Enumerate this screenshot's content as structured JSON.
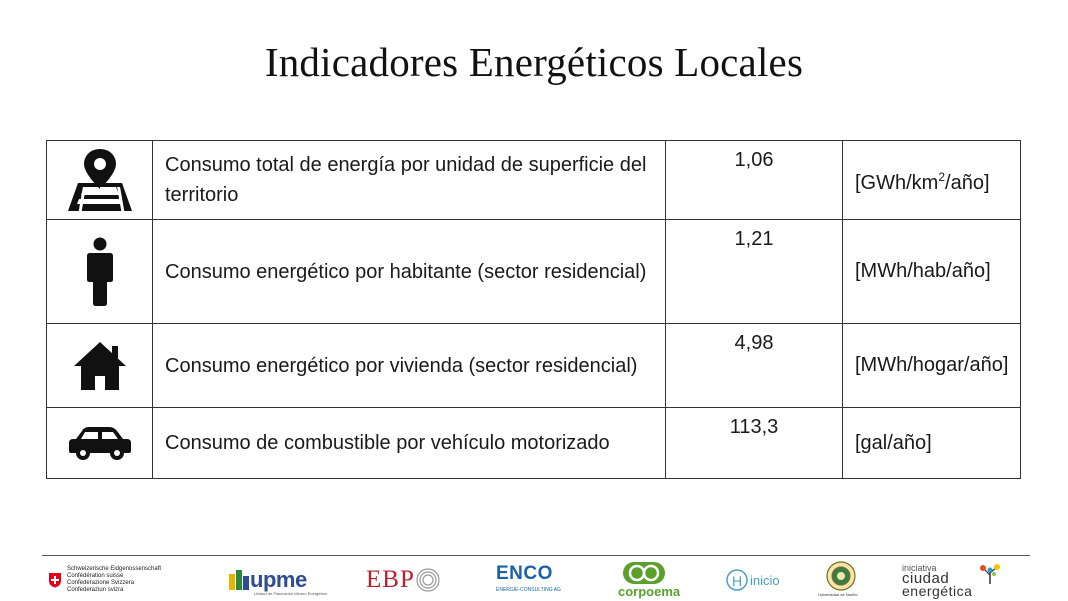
{
  "title": "Indicadores Energéticos Locales",
  "indicators": [
    {
      "icon": "map-location-icon",
      "description": "Consumo total de energía por unidad de superficie del territorio",
      "value": "1,06",
      "unit_prefix": "[GWh/km",
      "unit_sup": "2",
      "unit_suffix": "/año]"
    },
    {
      "icon": "person-icon",
      "description": "Consumo energético por habitante (sector residencial)",
      "value": "1,21",
      "unit": "[MWh/hab/año]"
    },
    {
      "icon": "house-icon",
      "description": "Consumo energético por vivienda (sector residencial)",
      "value": "4,98",
      "unit": "[MWh/hogar/año]"
    },
    {
      "icon": "car-icon",
      "description": "Consumo de combustible por vehículo motorizado",
      "value": "113,3",
      "unit": "[gal/año]"
    }
  ],
  "footer": {
    "swiss": [
      "Schweizerische Eidgenossenschaft",
      "Confédération suisse",
      "Confederazione Svizzera",
      "Confederaziun svizra"
    ],
    "upme": "upme",
    "upme_sub": "Unidad de Planeación Minero Energética",
    "ebp": "EBP",
    "enco": "ENCO",
    "enco_sub": "ENERGIE-CONSULTING AG",
    "corpoema": "corpoema",
    "hinicio": "inicio",
    "udenar": "Universidad de Nariño",
    "ciudad_top": "iniciativa",
    "ciudad_mid": "ciudad",
    "ciudad_bot": "energética",
    "colors": {
      "swiss_red": "#e3001b",
      "upme_blue": "#2f4d92",
      "ebp_red": "#b8222f",
      "enco_blue": "#1b63a8",
      "corpoema_green": "#5aa02c",
      "hinicio_blue": "#4aa0c8"
    }
  }
}
